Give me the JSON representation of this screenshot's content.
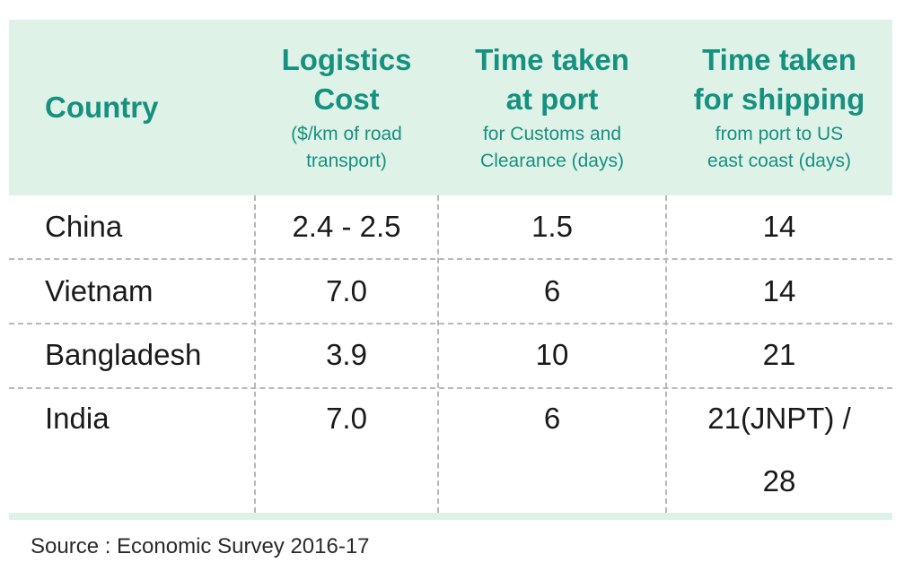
{
  "headers": [
    {
      "title": "Country",
      "subtitle": ""
    },
    {
      "title": "Logistics Cost",
      "subtitle": "($/km of road transport)"
    },
    {
      "title": "Time taken at port",
      "subtitle": "for Customs and Clearance (days)"
    },
    {
      "title": "Time taken for shipping",
      "subtitle": "from port to US east coast (days)"
    }
  ],
  "header_lines": {
    "c1_l1": "Logistics",
    "c1_l2": "Cost",
    "c1_s1": "($/km of road",
    "c1_s2": "transport)",
    "c2_l1": "Time taken",
    "c2_l2": "at port",
    "c2_s1": "for Customs and",
    "c2_s2": "Clearance (days)",
    "c3_l1": "Time taken",
    "c3_l2": "for shipping",
    "c3_s1": "from port to US",
    "c3_s2": "east coast (days)"
  },
  "rows": [
    {
      "country": "China",
      "logistics_cost": "2.4 - 2.5",
      "port_time": "1.5",
      "shipping_time": "14"
    },
    {
      "country": "Vietnam",
      "logistics_cost": "7.0",
      "port_time": "6",
      "shipping_time": "14"
    },
    {
      "country": "Bangladesh",
      "logistics_cost": "3.9",
      "port_time": "10",
      "shipping_time": "21"
    },
    {
      "country": "India",
      "logistics_cost": "7.0",
      "port_time": "6",
      "shipping_time": "21(JNPT) / 28",
      "shipping_time_l1": "21(JNPT) /",
      "shipping_time_l2": "28"
    }
  ],
  "source": "Source : Economic Survey 2016-17",
  "colors": {
    "header_background": "#dff2e8",
    "header_text": "#16917f",
    "body_text": "#1a1a1a",
    "divider": "#b8b8b8"
  }
}
